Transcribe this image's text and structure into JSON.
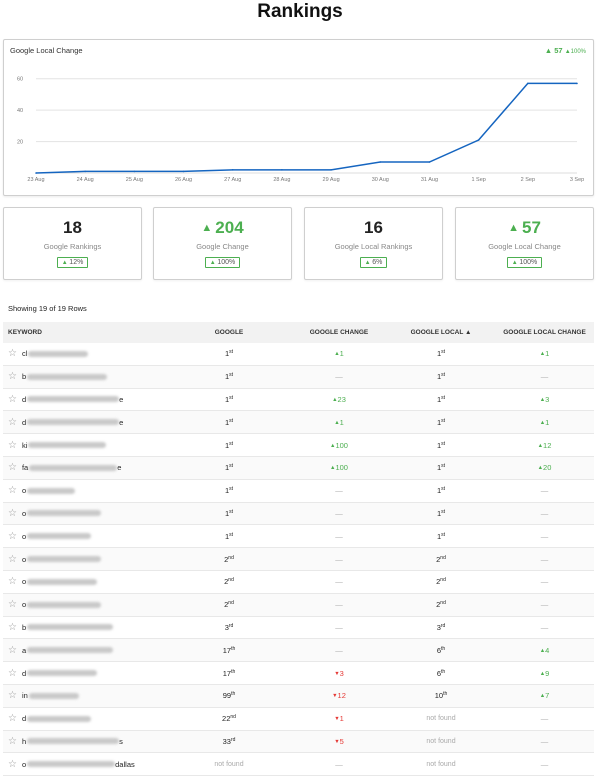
{
  "page": {
    "title": "Rankings"
  },
  "chart": {
    "title": "Google Local Change",
    "badge_value": "57",
    "badge_pct": "100%",
    "chart_data": {
      "type": "line",
      "x": [
        "23 Aug",
        "24 Aug",
        "25 Aug",
        "26 Aug",
        "27 Aug",
        "28 Aug",
        "29 Aug",
        "30 Aug",
        "31 Aug",
        "1 Sep",
        "2 Sep",
        "3 Sep"
      ],
      "values": [
        0,
        1,
        1,
        1,
        2,
        2,
        2,
        7,
        7,
        21,
        57,
        57
      ],
      "yticks": [
        20,
        40,
        60
      ],
      "ylim": [
        0,
        63
      ],
      "color": "#1565c0",
      "grid": true
    }
  },
  "stats": [
    {
      "value": "18",
      "label": "Google Rankings",
      "chip": "12%",
      "up": false
    },
    {
      "value": "204",
      "label": "Google Change",
      "chip": "100%",
      "up": true
    },
    {
      "value": "16",
      "label": "Google Local Rankings",
      "chip": "6%",
      "up": false
    },
    {
      "value": "57",
      "label": "Google Local Change",
      "chip": "100%",
      "up": true
    }
  ],
  "table": {
    "caption": "Showing 19 of 19 Rows",
    "headers": {
      "keyword": "KEYWORD",
      "google": "GOOGLE",
      "google_change": "GOOGLE CHANGE",
      "google_local": "GOOGLE LOCAL ▲",
      "google_local_change": "GOOGLE LOCAL CHANGE"
    },
    "rows": [
      {
        "kw": "cl",
        "tail": "",
        "blur": 60,
        "g": "1",
        "gs": "st",
        "gc": "1",
        "gcd": "up",
        "gl": "1",
        "gls": "st",
        "glc": "1",
        "glcd": "up"
      },
      {
        "kw": "b",
        "tail": "",
        "blur": 80,
        "g": "1",
        "gs": "st",
        "gc": "—",
        "gcd": "none",
        "gl": "1",
        "gls": "st",
        "glc": "—",
        "glcd": "none"
      },
      {
        "kw": "d",
        "tail": "e",
        "blur": 92,
        "g": "1",
        "gs": "st",
        "gc": "23",
        "gcd": "up",
        "gl": "1",
        "gls": "st",
        "glc": "3",
        "glcd": "up"
      },
      {
        "kw": "d",
        "tail": "e",
        "blur": 92,
        "g": "1",
        "gs": "st",
        "gc": "1",
        "gcd": "up",
        "gl": "1",
        "gls": "st",
        "glc": "1",
        "glcd": "up"
      },
      {
        "kw": "ki",
        "tail": "",
        "blur": 78,
        "g": "1",
        "gs": "st",
        "gc": "100",
        "gcd": "up",
        "gl": "1",
        "gls": "st",
        "glc": "12",
        "glcd": "up"
      },
      {
        "kw": "fa",
        "tail": "e",
        "blur": 88,
        "g": "1",
        "gs": "st",
        "gc": "100",
        "gcd": "up",
        "gl": "1",
        "gls": "st",
        "glc": "20",
        "glcd": "up"
      },
      {
        "kw": "o",
        "tail": "",
        "blur": 48,
        "g": "1",
        "gs": "st",
        "gc": "—",
        "gcd": "none",
        "gl": "1",
        "gls": "st",
        "glc": "—",
        "glcd": "none"
      },
      {
        "kw": "o",
        "tail": "",
        "blur": 74,
        "g": "1",
        "gs": "st",
        "gc": "—",
        "gcd": "none",
        "gl": "1",
        "gls": "st",
        "glc": "—",
        "glcd": "none"
      },
      {
        "kw": "o",
        "tail": "",
        "blur": 64,
        "g": "1",
        "gs": "st",
        "gc": "—",
        "gcd": "none",
        "gl": "1",
        "gls": "st",
        "glc": "—",
        "glcd": "none"
      },
      {
        "kw": "o",
        "tail": "",
        "blur": 74,
        "g": "2",
        "gs": "nd",
        "gc": "—",
        "gcd": "none",
        "gl": "2",
        "gls": "nd",
        "glc": "—",
        "glcd": "none"
      },
      {
        "kw": "o",
        "tail": "",
        "blur": 70,
        "g": "2",
        "gs": "nd",
        "gc": "—",
        "gcd": "none",
        "gl": "2",
        "gls": "nd",
        "glc": "—",
        "glcd": "none"
      },
      {
        "kw": "o",
        "tail": "",
        "blur": 74,
        "g": "2",
        "gs": "nd",
        "gc": "—",
        "gcd": "none",
        "gl": "2",
        "gls": "nd",
        "glc": "—",
        "glcd": "none"
      },
      {
        "kw": "b",
        "tail": "",
        "blur": 86,
        "g": "3",
        "gs": "rd",
        "gc": "—",
        "gcd": "none",
        "gl": "3",
        "gls": "rd",
        "glc": "—",
        "glcd": "none"
      },
      {
        "kw": "a",
        "tail": "",
        "blur": 86,
        "g": "17",
        "gs": "th",
        "gc": "—",
        "gcd": "none",
        "gl": "6",
        "gls": "th",
        "glc": "4",
        "glcd": "up"
      },
      {
        "kw": "d",
        "tail": "",
        "blur": 70,
        "g": "17",
        "gs": "th",
        "gc": "3",
        "gcd": "down",
        "gl": "6",
        "gls": "th",
        "glc": "9",
        "glcd": "up"
      },
      {
        "kw": "in",
        "tail": "",
        "blur": 50,
        "g": "99",
        "gs": "th",
        "gc": "12",
        "gcd": "down",
        "gl": "10",
        "gls": "th",
        "glc": "7",
        "glcd": "up"
      },
      {
        "kw": "d",
        "tail": "",
        "blur": 64,
        "g": "22",
        "gs": "nd",
        "gc": "1",
        "gcd": "down",
        "gl": "not found",
        "gls": "",
        "glc": "—",
        "glcd": "none"
      },
      {
        "kw": "h",
        "tail": "s",
        "blur": 92,
        "g": "33",
        "gs": "rd",
        "gc": "5",
        "gcd": "down",
        "gl": "not found",
        "gls": "",
        "glc": "—",
        "glcd": "none"
      },
      {
        "kw": "o",
        "tail": "dallas",
        "blur": 88,
        "g": "not found",
        "gs": "",
        "gc": "—",
        "gcd": "none",
        "gl": "not found",
        "gls": "",
        "glc": "—",
        "glcd": "none"
      }
    ]
  }
}
